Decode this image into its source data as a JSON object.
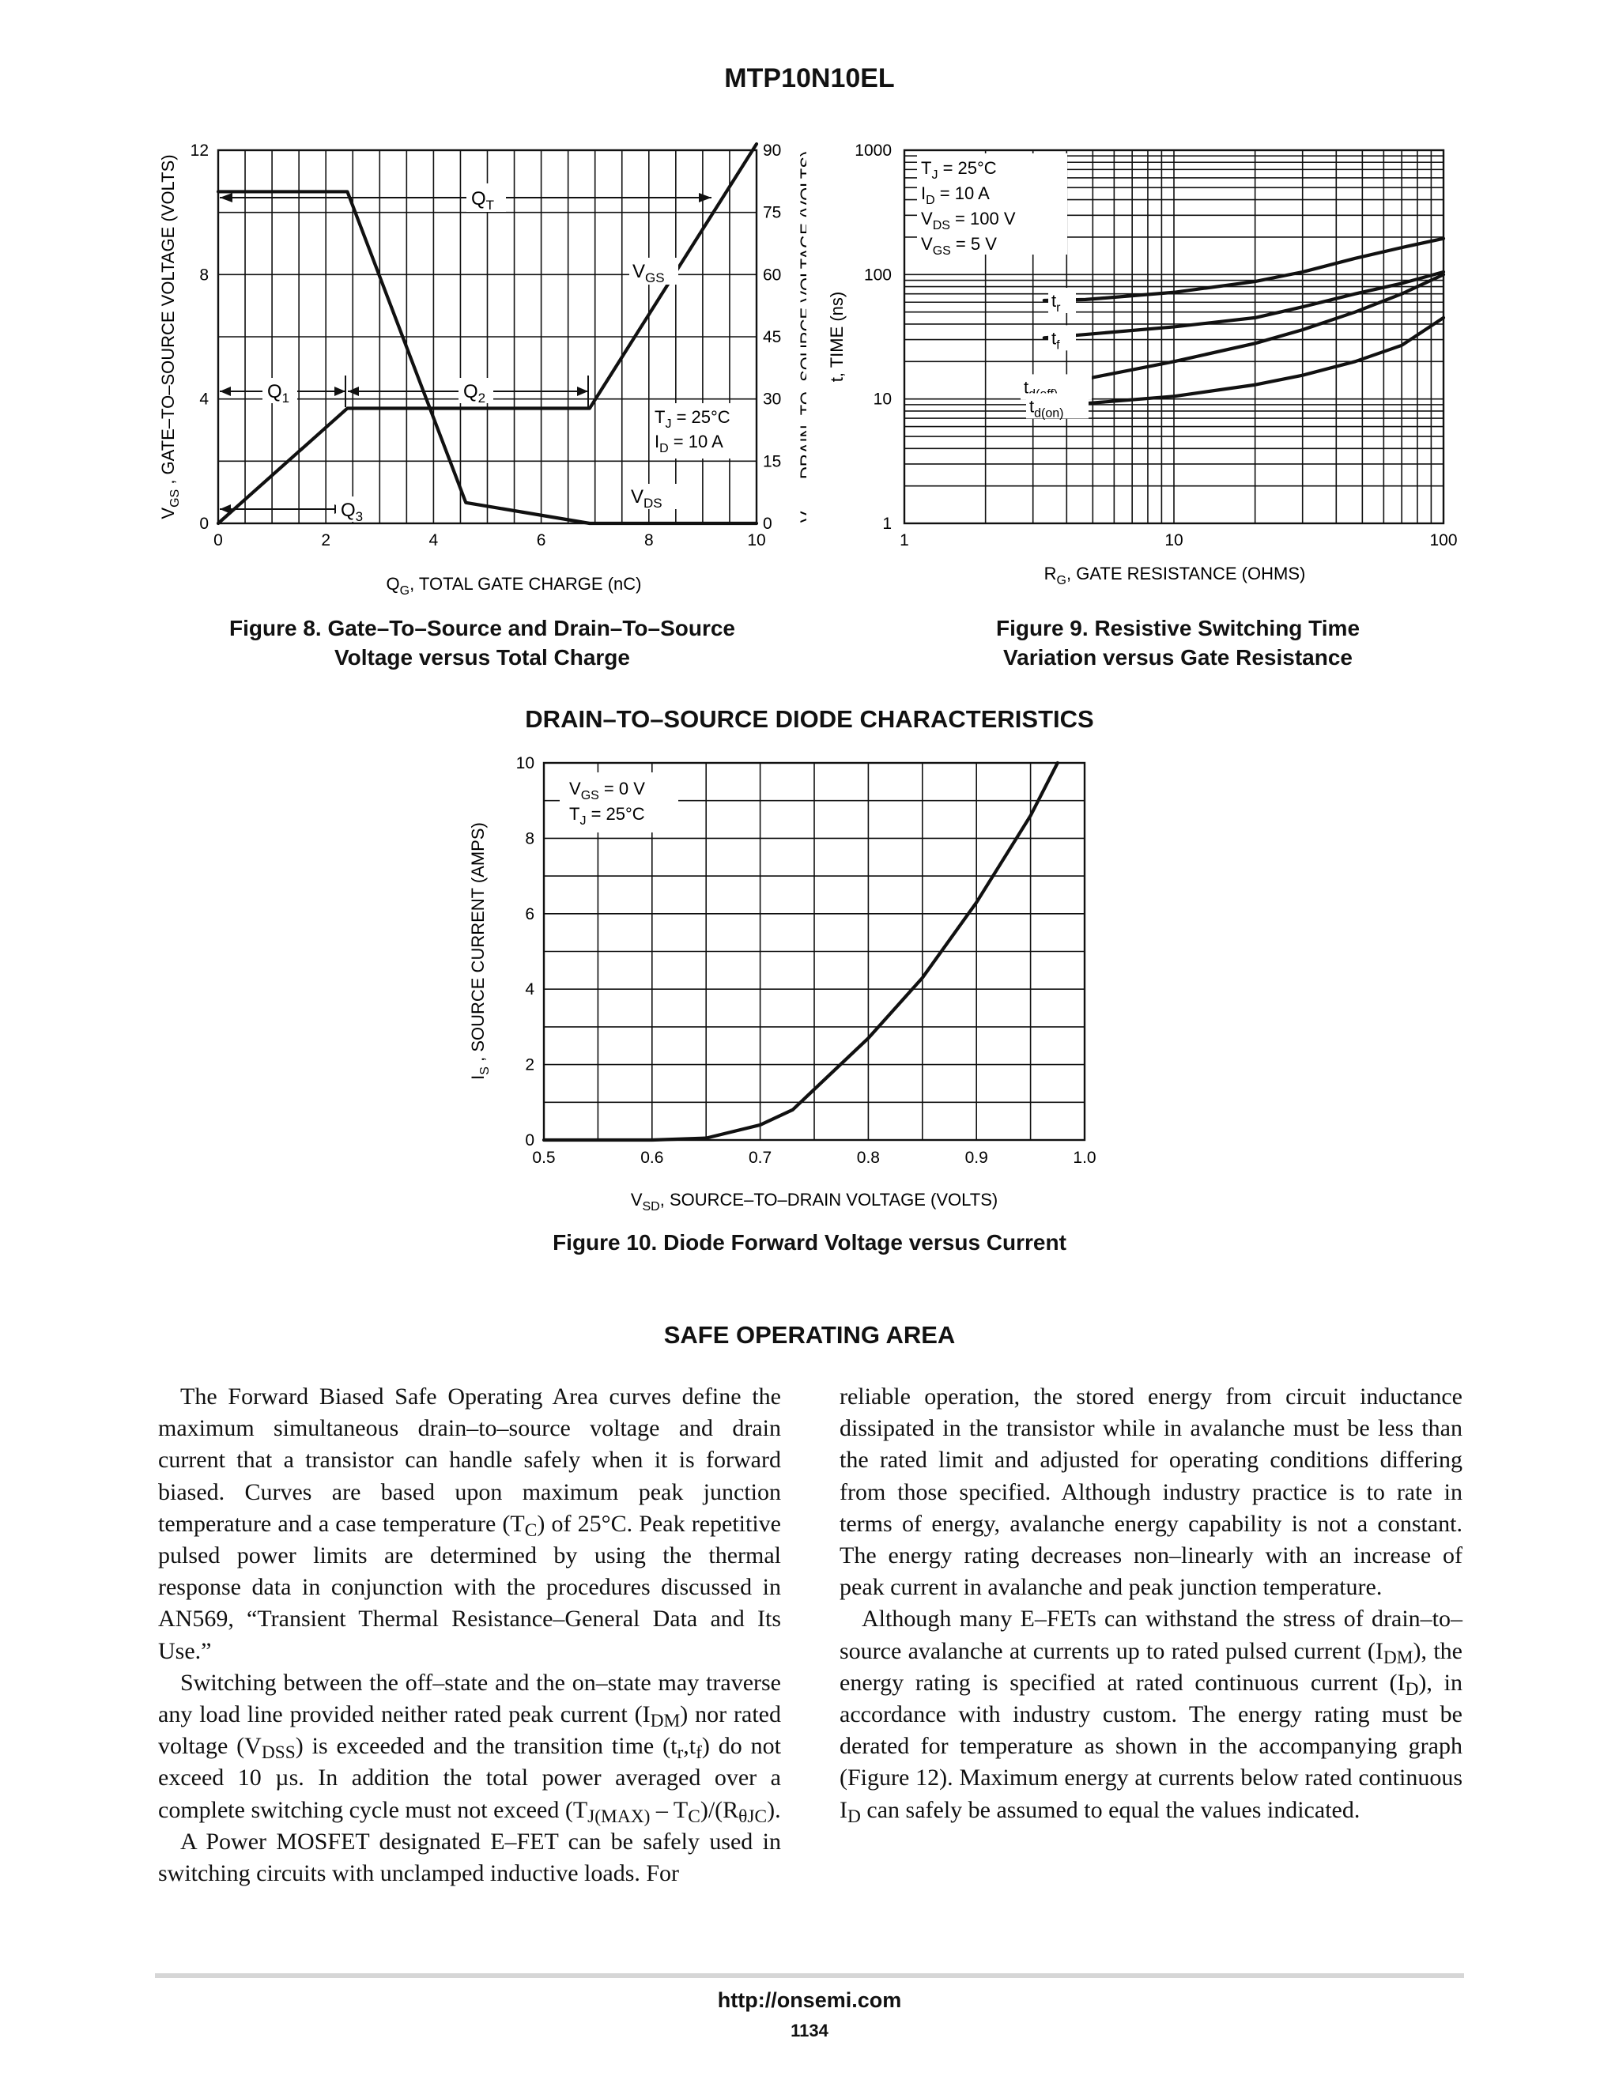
{
  "header": {
    "title": "MTP10N10EL"
  },
  "fig8": {
    "caption_line1": "Figure 8. Gate–To–Source and Drain–To–Source",
    "caption_line2": "Voltage versus Total Charge",
    "chart_data": {
      "type": "line",
      "xlabel_main": "Q",
      "xlabel_sub": "G",
      "xlabel_rest": ", TOTAL GATE CHARGE (nC)",
      "ylabel_left_main": "V",
      "ylabel_left_sub": "GS",
      "ylabel_left_rest": " , GATE–TO–SOURCE VOLTAGE (VOLTS)",
      "ylabel_right_main": "V",
      "ylabel_right_sub": "DS",
      "ylabel_right_rest": " , DRAIN–TO–SOURCE VOLTAGE (VOLTS)",
      "x_ticks": [
        "0",
        "2",
        "4",
        "6",
        "8",
        "10"
      ],
      "y_left_ticks": [
        "0",
        "4",
        "8",
        "12"
      ],
      "y_right_ticks": [
        "0",
        "15",
        "30",
        "45",
        "60",
        "75",
        "90"
      ],
      "xlim": [
        0,
        10
      ],
      "ylim_left": [
        0,
        12
      ],
      "ylim_right": [
        0,
        90
      ],
      "series": [
        {
          "name_main": "V",
          "name_sub": "GS",
          "axis": "left",
          "x": [
            0,
            2.4,
            6.9,
            10
          ],
          "y": [
            0,
            3.7,
            3.7,
            12.2
          ]
        },
        {
          "name_main": "V",
          "name_sub": "DS",
          "axis": "right",
          "x": [
            0,
            2.4,
            4.6,
            6.9,
            10
          ],
          "y": [
            80,
            80,
            5,
            0,
            0
          ]
        }
      ],
      "annotations": {
        "qt_main": "Q",
        "qt_sub": "T",
        "q1_main": "Q",
        "q1_sub": "1",
        "q2_main": "Q",
        "q2_sub": "2",
        "q3_main": "Q",
        "q3_sub": "3",
        "tj_main": "T",
        "tj_sub": "J",
        "tj_rest": " = 25°C",
        "id_main": "I",
        "id_sub": "D",
        "id_rest": " = 10 A"
      }
    }
  },
  "fig9": {
    "caption_line1": "Figure 9.  Resistive Switching Time",
    "caption_line2": "Variation versus Gate Resistance",
    "chart_data": {
      "type": "line",
      "xscale": "log",
      "yscale": "log",
      "xlabel_main": "R",
      "xlabel_sub": "G",
      "xlabel_rest": ", GATE RESISTANCE (OHMS)",
      "ylabel": "t, TIME (ns)",
      "x_ticks": [
        "1",
        "10",
        "100"
      ],
      "y_ticks": [
        "1",
        "10",
        "100",
        "1000"
      ],
      "xlim": [
        1,
        100
      ],
      "ylim": [
        1,
        1000
      ],
      "series": [
        {
          "name_main": "t",
          "name_sub": "r",
          "x": [
            3.3,
            4.7,
            10,
            20,
            30,
            47,
            70,
            100
          ],
          "y": [
            62,
            63,
            72,
            88,
            105,
            135,
            165,
            195
          ]
        },
        {
          "name_main": "t",
          "name_sub": "f",
          "x": [
            3.3,
            4.7,
            10,
            20,
            30,
            47,
            70,
            100
          ],
          "y": [
            31,
            33,
            38,
            45,
            55,
            70,
            85,
            105
          ]
        },
        {
          "name_main": "t",
          "name_sub": "d(off)",
          "x": [
            3.3,
            4.7,
            10,
            20,
            30,
            47,
            70,
            100
          ],
          "y": [
            12.5,
            14.5,
            20,
            28,
            36,
            50,
            70,
            100
          ]
        },
        {
          "name_main": "t",
          "name_sub": "d(on)",
          "x": [
            3.3,
            4.7,
            10,
            20,
            30,
            47,
            70,
            100
          ],
          "y": [
            8.8,
            9.2,
            10.5,
            13,
            15.5,
            20,
            27,
            45
          ]
        }
      ],
      "conditions": [
        {
          "main": "T",
          "sub": "J",
          "rest": " = 25°C"
        },
        {
          "main": "I",
          "sub": "D",
          "rest": " = 10 A"
        },
        {
          "main": "V",
          "sub": "DS",
          "rest": " = 100 V"
        },
        {
          "main": "V",
          "sub": "GS",
          "rest": " = 5 V"
        }
      ]
    }
  },
  "section1": {
    "title": "DRAIN–TO–SOURCE DIODE CHARACTERISTICS"
  },
  "fig10": {
    "caption": "Figure 10. Diode Forward Voltage versus Current",
    "chart_data": {
      "type": "line",
      "xlabel_main": "V",
      "xlabel_sub": "SD",
      "xlabel_rest": ", SOURCE–TO–DRAIN VOLTAGE (VOLTS)",
      "ylabel_main": "I",
      "ylabel_sub": "S",
      "ylabel_rest": " , SOURCE CURRENT (AMPS)",
      "x_ticks": [
        "0.5",
        "0.6",
        "0.7",
        "0.8",
        "0.9",
        "1.0"
      ],
      "y_ticks": [
        "0",
        "2",
        "4",
        "6",
        "8",
        "10"
      ],
      "xlim": [
        0.5,
        1.0
      ],
      "ylim": [
        0,
        10
      ],
      "x": [
        0.5,
        0.6,
        0.65,
        0.7,
        0.73,
        0.8,
        0.85,
        0.9,
        0.95,
        0.975
      ],
      "y": [
        0,
        0,
        0.05,
        0.4,
        0.8,
        2.7,
        4.3,
        6.3,
        8.6,
        10
      ],
      "conditions": [
        {
          "main": "V",
          "sub": "GS",
          "rest": " = 0 V"
        },
        {
          "main": "T",
          "sub": "J",
          "rest": " = 25°C"
        }
      ]
    }
  },
  "section2": {
    "title": "SAFE OPERATING AREA"
  },
  "body": {
    "left": {
      "p1_a": "The Forward Biased Safe Operating Area curves define the maximum simultaneous drain–to–source voltage and drain current that a transistor can handle safely when it is forward biased. Curves are based upon maximum peak junction temperature and a case temperature (T",
      "p1_sub": "C",
      "p1_b": ") of 25°C. Peak repetitive pulsed power limits are determined by using the thermal response data in conjunction with the procedures discussed in AN569, “Transient Thermal Resistance–General Data and Its Use.”",
      "p2_a": "Switching between the off–state and the on–state may traverse any load line provided neither rated peak current (I",
      "p2_sub1": "DM",
      "p2_b": ") nor rated voltage (V",
      "p2_sub2": "DSS",
      "p2_c": ") is exceeded and the transition time (t",
      "p2_sub3": "r",
      "p2_d": ",t",
      "p2_sub4": "f",
      "p2_e": ") do not exceed 10 µs. In addition the total power averaged over a complete switching cycle must not exceed (T",
      "p2_sub5": "J(MAX)",
      "p2_f": " – T",
      "p2_sub6": "C",
      "p2_g": ")/(R",
      "p2_sub7": "θJC",
      "p2_h": ").",
      "p3": "A Power MOSFET designated E–FET can be safely used in switching circuits with unclamped inductive loads. For"
    },
    "right": {
      "p1": "reliable operation, the stored energy from circuit inductance dissipated in the transistor while in avalanche must be less than the rated limit and adjusted for operating conditions differing from those specified. Although industry practice is to rate in terms of energy, avalanche energy capability is not a constant. The energy rating decreases non–linearly with an increase of peak current in avalanche and peak junction temperature.",
      "p2_a": "Although many E–FETs can withstand the stress of drain–to–source avalanche at currents up to rated pulsed current (I",
      "p2_sub1": "DM",
      "p2_b": "), the energy rating is specified at rated continuous current (I",
      "p2_sub2": "D",
      "p2_c": "), in accordance with industry custom. The energy rating must be derated for temperature as shown in the accompanying graph (Figure 12). Maximum energy at currents below rated continuous I",
      "p2_sub3": "D",
      "p2_d": " can safely be assumed to equal the values indicated."
    }
  },
  "footer": {
    "url": "http://onsemi.com",
    "page": "1134"
  }
}
